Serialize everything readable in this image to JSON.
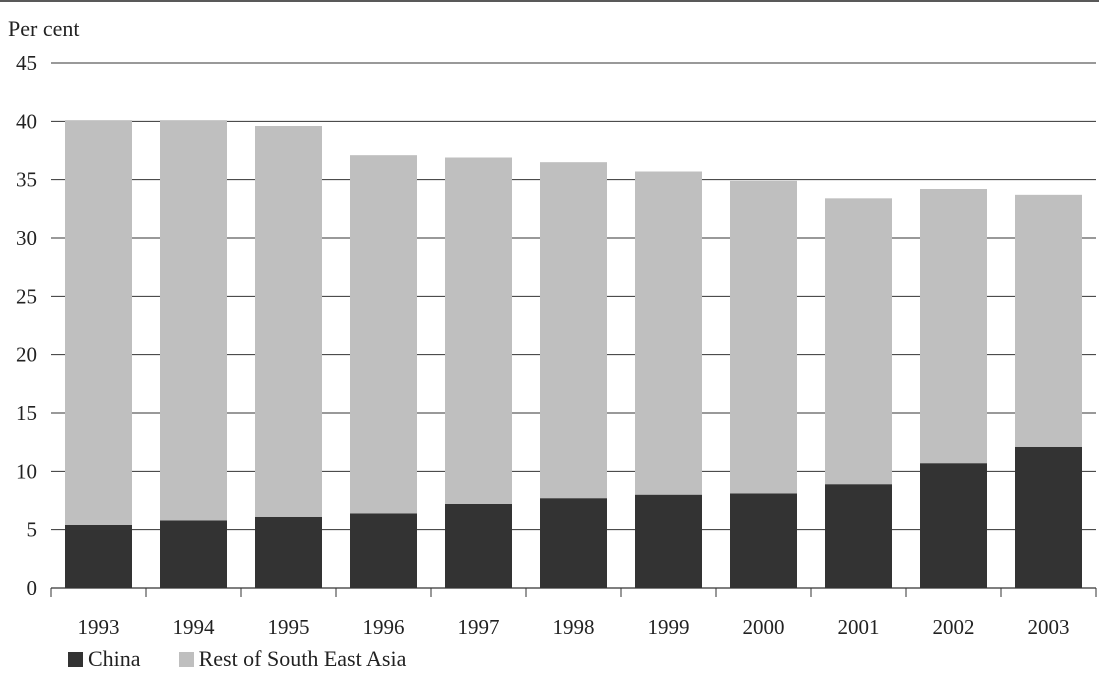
{
  "chart_data": {
    "type": "bar",
    "stacked": true,
    "ylabel": "Per cent",
    "ylim": [
      0,
      45
    ],
    "yticks": [
      0,
      5,
      10,
      15,
      20,
      25,
      30,
      35,
      40,
      45
    ],
    "grid": true,
    "legend_position": "bottom-left",
    "categories": [
      "1993",
      "1994",
      "1995",
      "1996",
      "1997",
      "1998",
      "1999",
      "2000",
      "2001",
      "2002",
      "2003"
    ],
    "series": [
      {
        "name": "China",
        "color": "#333333",
        "values": [
          5.4,
          5.8,
          6.1,
          6.4,
          7.2,
          7.7,
          8.0,
          8.1,
          8.9,
          10.7,
          12.1
        ]
      },
      {
        "name": "Rest of South East Asia",
        "color": "#bfbfbf",
        "values": [
          34.7,
          34.3,
          33.5,
          30.7,
          29.7,
          28.8,
          27.7,
          26.8,
          24.5,
          23.5,
          21.6
        ]
      }
    ]
  }
}
